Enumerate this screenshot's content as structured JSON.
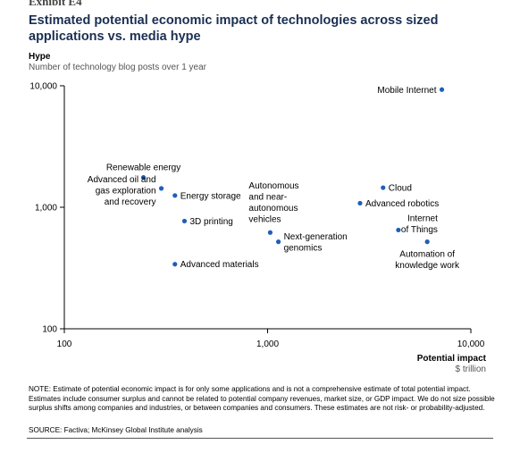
{
  "header": {
    "exhibit": "Exhibit E4",
    "title": "Estimated potential economic impact of technologies across sized applications vs. media hype"
  },
  "axes": {
    "y_title": "Hype",
    "y_subtitle": "Number of technology blog posts over 1 year",
    "x_title": "Potential impact",
    "x_unit": "$ trillion"
  },
  "footer": {
    "note": "NOTE: Estimate of potential economic impact is for only some applications and is not a comprehensive estimate of total potential impact. Estimates include consumer surplus and cannot be related to potential company revenues, market size, or GDP impact. We do not size possible surplus shifts among companies and industries, or between companies and consumers. These estimates are not risk- or probability-adjusted.",
    "source": "SOURCE: Factiva; McKinsey Global Institute analysis"
  },
  "colors": {
    "title": "#1b2f53",
    "point": "#1f5fb5",
    "axis": "#000000"
  },
  "chart_data": {
    "type": "scatter",
    "xscale": "log",
    "yscale": "log",
    "xlim": [
      100,
      10000
    ],
    "ylim": [
      100,
      10000
    ],
    "xticks": [
      {
        "value": 100,
        "label": "100"
      },
      {
        "value": 1000,
        "label": "1,000"
      },
      {
        "value": 10000,
        "label": "10,000"
      }
    ],
    "yticks": [
      {
        "value": 100,
        "label": "100"
      },
      {
        "value": 1000,
        "label": "1,000"
      },
      {
        "value": 10000,
        "label": "10,000"
      }
    ],
    "points": [
      {
        "label": [
          "Mobile Internet"
        ],
        "x": 7200,
        "y": 9300,
        "anchor": "left"
      },
      {
        "label": [
          "Renewable energy"
        ],
        "x": 245,
        "y": 1760,
        "anchor": "above"
      },
      {
        "label": [
          "Advanced oil and",
          "gas exploration",
          "and recovery"
        ],
        "x": 300,
        "y": 1430,
        "anchor": "left"
      },
      {
        "label": [
          "Energy storage"
        ],
        "x": 350,
        "y": 1250,
        "anchor": "right"
      },
      {
        "label": [
          "Autonomous",
          "and near-",
          "autonomous",
          "vehicles"
        ],
        "x": 1030,
        "y": 620,
        "anchor": "above"
      },
      {
        "label": [
          "3D printing"
        ],
        "x": 390,
        "y": 770,
        "anchor": "right"
      },
      {
        "label": [
          "Next-generation",
          "genomics"
        ],
        "x": 1130,
        "y": 520,
        "anchor": "right"
      },
      {
        "label": [
          "Advanced materials"
        ],
        "x": 350,
        "y": 340,
        "anchor": "right"
      },
      {
        "label": [
          "Cloud"
        ],
        "x": 3700,
        "y": 1450,
        "anchor": "right"
      },
      {
        "label": [
          "Advanced robotics"
        ],
        "x": 2850,
        "y": 1080,
        "anchor": "right"
      },
      {
        "label": [
          "Internet",
          "of Things"
        ],
        "x": 4400,
        "y": 650,
        "anchor": "right"
      },
      {
        "label": [
          "Automation of",
          "knowledge work"
        ],
        "x": 6100,
        "y": 520,
        "anchor": "below"
      }
    ]
  }
}
